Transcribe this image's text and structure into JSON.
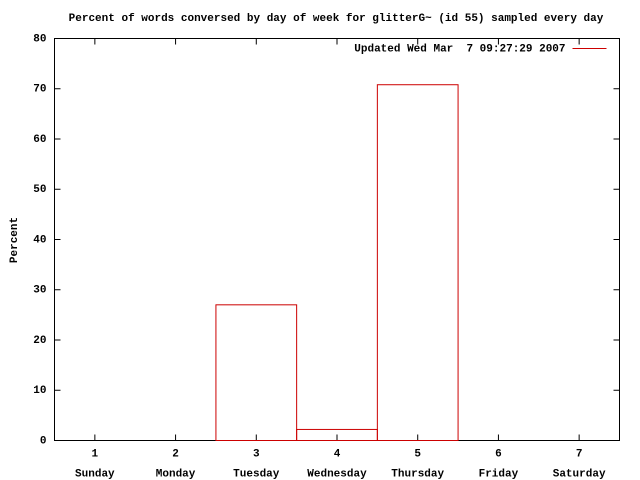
{
  "chart_data": {
    "type": "bar",
    "title": "Percent of words conversed by day of week for glitterG~ (id 55) sampled every day",
    "y_label": "Percent",
    "x": [
      1,
      2,
      3,
      4,
      5,
      6,
      7
    ],
    "categories": [
      "Sunday",
      "Monday",
      "Tuesday",
      "Wednesday",
      "Thursday",
      "Friday",
      "Saturday"
    ],
    "series": [
      {
        "name": "Updated Wed Mar  7 09:27:29 2007",
        "color": "#cc0000",
        "values": [
          0,
          0,
          27,
          2.2,
          70.8,
          0,
          0
        ]
      }
    ],
    "xlim": [
      0.5,
      7.5
    ],
    "xticks": [
      1,
      2,
      3,
      4,
      5,
      6,
      7
    ],
    "ylim": [
      0,
      80
    ],
    "yticks": [
      0,
      10,
      20,
      30,
      40,
      50,
      60,
      70,
      80
    ],
    "legend": "top-right"
  }
}
